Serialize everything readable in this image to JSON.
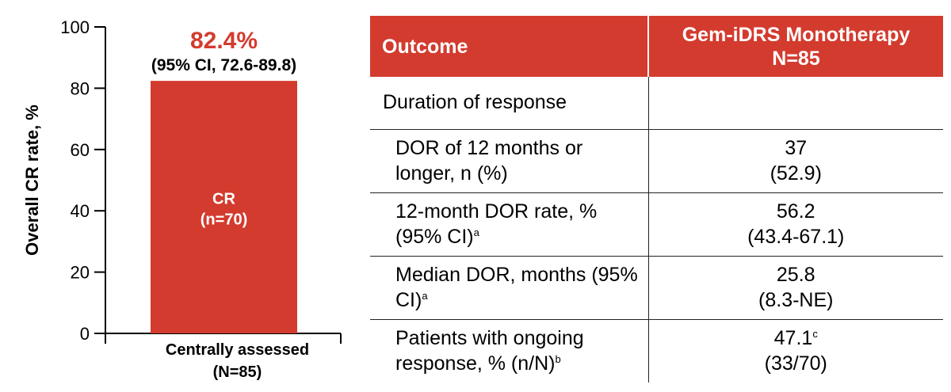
{
  "chart_data": {
    "type": "bar",
    "categories": [
      "Centrally assessed"
    ],
    "category_sublabels": [
      "(N=85)"
    ],
    "values": [
      82.4
    ],
    "bar_labels": [
      "CR",
      "(n=70)"
    ],
    "value_label": "82.4%",
    "value_sublabel": "(95% CI, 72.6-89.8)",
    "ylabel": "Overall CR rate, %",
    "ylim": [
      0,
      100
    ],
    "yticks": [
      0,
      20,
      40,
      60,
      80,
      100
    ],
    "grid": false,
    "colors": {
      "bar": "#d33b2e",
      "value_label": "#d33b2e",
      "axis": "#000000"
    }
  },
  "table": {
    "header": {
      "col1": "Outcome",
      "col2_line1": "Gem-iDRS Monotherapy",
      "col2_line2": "N=85",
      "color": "#d33b2e"
    },
    "section_label": "Duration of response",
    "rows": [
      {
        "label": "DOR of 12 months or longer, n (%)",
        "value1": "37",
        "value2": "(52.9)"
      },
      {
        "label": "12-month DOR rate, % (95% CI)",
        "label_sup": "a",
        "value1": "56.2",
        "value2": "(43.4-67.1)"
      },
      {
        "label": "Median DOR, months (95% CI)",
        "label_sup": "a",
        "value1": "25.8",
        "value2": "(8.3-NE)"
      },
      {
        "label": "Patients with ongoing response, % (n/N)",
        "label_sup": "b",
        "value1": "47.1",
        "value1_sup": "c",
        "value2": "(33/70)"
      }
    ]
  }
}
